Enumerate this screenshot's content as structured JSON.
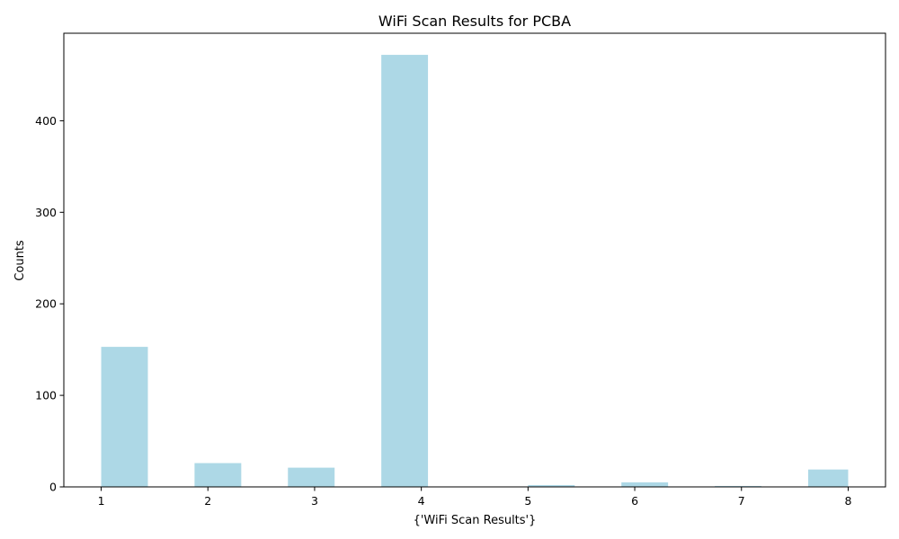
{
  "chart_data": {
    "type": "bar",
    "title": "WiFi Scan Results for PCBA",
    "xlabel": "{'WiFi Scan Results'}",
    "ylabel": "Counts",
    "bars": [
      {
        "x_start": 1.0,
        "x_end": 1.4375,
        "value": 153
      },
      {
        "x_start": 1.875,
        "x_end": 2.3125,
        "value": 26
      },
      {
        "x_start": 2.75,
        "x_end": 3.1875,
        "value": 21
      },
      {
        "x_start": 3.625,
        "x_end": 4.0625,
        "value": 472
      },
      {
        "x_start": 5.0,
        "x_end": 5.4375,
        "value": 2
      },
      {
        "x_start": 5.875,
        "x_end": 6.3125,
        "value": 5
      },
      {
        "x_start": 6.75,
        "x_end": 7.1875,
        "value": 1
      },
      {
        "x_start": 7.625,
        "x_end": 8.0,
        "value": 19
      }
    ],
    "xticks": [
      1,
      2,
      3,
      4,
      5,
      6,
      7,
      8
    ],
    "yticks": [
      0,
      100,
      200,
      300,
      400
    ],
    "xlim": [
      0.65,
      8.35
    ],
    "ylim": [
      0,
      495.6
    ],
    "grid": false,
    "color": "#ADD8E6"
  }
}
